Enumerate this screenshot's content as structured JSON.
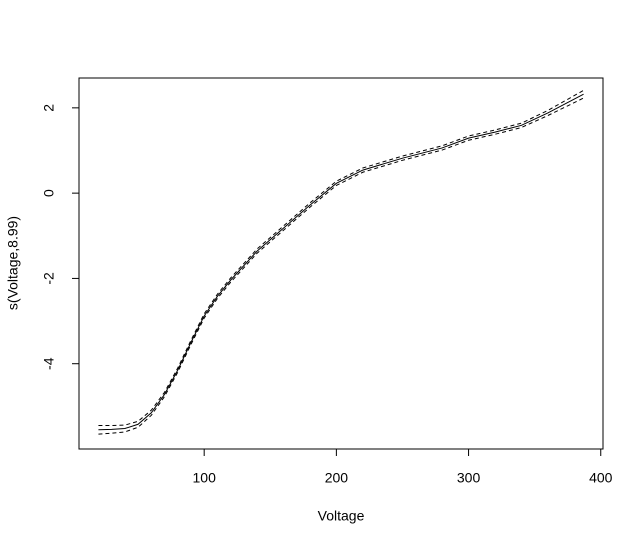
{
  "chart_data": {
    "type": "line",
    "x_label": "Voltage",
    "y_label": "s(Voltage,8.99)",
    "x": [
      20,
      30,
      40,
      50,
      60,
      70,
      80,
      90,
      100,
      110,
      120,
      140,
      160,
      180,
      200,
      220,
      250,
      280,
      300,
      320,
      340,
      360,
      387
    ],
    "series": [
      {
        "color": "#000000",
        "dashed": false,
        "values": [
          -5.55,
          -5.54,
          -5.52,
          -5.42,
          -5.15,
          -4.72,
          -4.15,
          -3.5,
          -2.88,
          -2.42,
          -2.04,
          -1.36,
          -0.82,
          -0.28,
          0.23,
          0.54,
          0.82,
          1.06,
          1.29,
          1.43,
          1.59,
          1.88,
          2.32
        ]
      },
      {
        "color": "#000000",
        "dashed": true,
        "values": [
          -5.45,
          -5.45,
          -5.44,
          -5.35,
          -5.09,
          -4.67,
          -4.1,
          -3.45,
          -2.83,
          -2.37,
          -1.99,
          -1.31,
          -0.77,
          -0.23,
          0.28,
          0.59,
          0.87,
          1.11,
          1.34,
          1.48,
          1.64,
          1.94,
          2.41
        ]
      },
      {
        "color": "#000000",
        "dashed": true,
        "values": [
          -5.65,
          -5.63,
          -5.6,
          -5.49,
          -5.21,
          -4.77,
          -4.2,
          -3.55,
          -2.93,
          -2.47,
          -2.09,
          -1.41,
          -0.87,
          -0.33,
          0.18,
          0.49,
          0.77,
          1.01,
          1.24,
          1.38,
          1.54,
          1.82,
          2.23
        ]
      }
    ],
    "xlim": [
      5.3,
      401.7
    ],
    "ylim": [
      -6.0,
      2.7
    ],
    "xticks": [
      100,
      200,
      300,
      400
    ],
    "yticks": [
      -4,
      -2,
      0,
      2
    ]
  }
}
